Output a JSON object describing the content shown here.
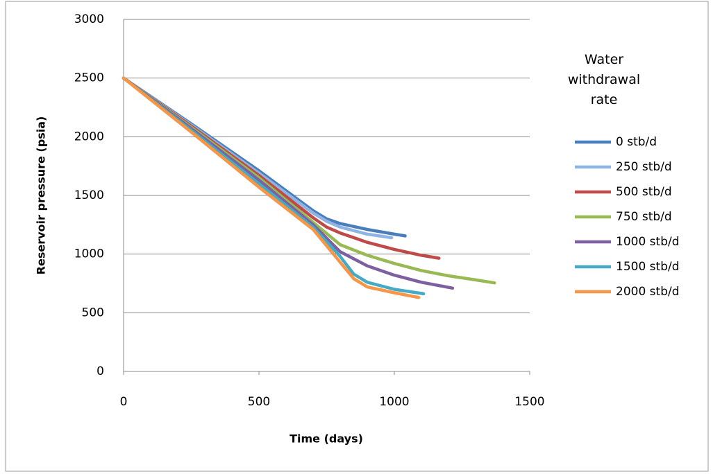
{
  "chart_data": {
    "type": "line",
    "x_label": "Time (days)",
    "y_label": "Reservoir pressure (psia)",
    "legend_title": "Water withdrawal rate",
    "legend_position": "right",
    "grid": true,
    "xlim": [
      0,
      1500
    ],
    "xticks": [
      0,
      500,
      1000,
      1500
    ],
    "ylim": [
      0,
      3000
    ],
    "yticks": [
      0,
      500,
      1000,
      1500,
      2000,
      2500,
      3000
    ],
    "series": [
      {
        "name": "0 stb/d",
        "color": "#4a7ebb",
        "x": [
          0,
          250,
          500,
          700,
          750,
          800,
          900,
          1000,
          1040
        ],
        "values": [
          2500,
          2110,
          1710,
          1370,
          1300,
          1260,
          1210,
          1170,
          1155
        ]
      },
      {
        "name": "250 stb/d",
        "color": "#8eb4e3",
        "x": [
          0,
          250,
          500,
          700,
          750,
          800,
          900,
          990
        ],
        "values": [
          2500,
          2100,
          1690,
          1350,
          1280,
          1230,
          1170,
          1140
        ]
      },
      {
        "name": "500 stb/d",
        "color": "#be4b48",
        "x": [
          0,
          250,
          500,
          700,
          750,
          800,
          900,
          1000,
          1100,
          1165
        ],
        "values": [
          2500,
          2090,
          1670,
          1310,
          1230,
          1180,
          1100,
          1040,
          990,
          965
        ]
      },
      {
        "name": "750 stb/d",
        "color": "#98b954",
        "x": [
          0,
          250,
          500,
          700,
          800,
          900,
          1000,
          1100,
          1200,
          1300,
          1370
        ],
        "values": [
          2500,
          2080,
          1650,
          1270,
          1080,
          990,
          920,
          860,
          815,
          780,
          755
        ]
      },
      {
        "name": "1000 stb/d",
        "color": "#7d60a0",
        "x": [
          0,
          250,
          500,
          700,
          800,
          900,
          1000,
          1100,
          1215
        ],
        "values": [
          2500,
          2070,
          1630,
          1250,
          1020,
          900,
          820,
          760,
          710
        ]
      },
      {
        "name": "1500 stb/d",
        "color": "#46aac5",
        "x": [
          0,
          250,
          500,
          700,
          800,
          850,
          900,
          1000,
          1108
        ],
        "values": [
          2500,
          2055,
          1600,
          1230,
          980,
          830,
          760,
          700,
          662
        ]
      },
      {
        "name": "2000 stb/d",
        "color": "#f79646",
        "x": [
          0,
          250,
          500,
          700,
          800,
          850,
          900,
          1000,
          1090
        ],
        "values": [
          2500,
          2040,
          1570,
          1210,
          930,
          790,
          720,
          670,
          630
        ]
      }
    ]
  }
}
